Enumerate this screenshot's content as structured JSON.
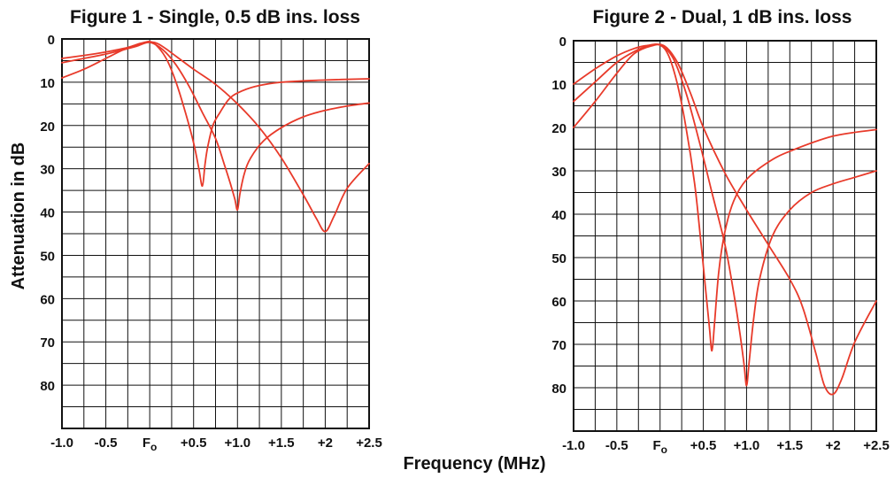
{
  "shared": {
    "xlabel": "Frequency (MHz)",
    "ylabel": "Attenuation in dB"
  },
  "colors": {
    "curve": "#e83a2a",
    "grid": "#111111"
  },
  "chart_data": [
    {
      "type": "line",
      "title": "Figure 1 - Single, 0.5 dB ins. loss",
      "xlabel": "Frequency (MHz)",
      "ylabel": "Attenuation in dB",
      "xlim": [
        -1.0,
        2.5
      ],
      "ylim": [
        0,
        90
      ],
      "y_inverted": true,
      "grid": true,
      "x_ticks": [
        {
          "value": -1.0,
          "label": "-1.0"
        },
        {
          "value": -0.5,
          "label": "-0.5"
        },
        {
          "value": 0.0,
          "label": "F",
          "sub": "o"
        },
        {
          "value": 0.5,
          "label": "+0.5"
        },
        {
          "value": 1.0,
          "label": "+1.0"
        },
        {
          "value": 1.5,
          "label": "+1.5"
        },
        {
          "value": 2.0,
          "label": "+2"
        },
        {
          "value": 2.5,
          "label": "+2.5"
        }
      ],
      "y_ticks": [
        {
          "value": 0,
          "label": "0"
        },
        {
          "value": 10,
          "label": "10"
        },
        {
          "value": 20,
          "label": "20"
        },
        {
          "value": 30,
          "label": "30"
        },
        {
          "value": 40,
          "label": "40"
        },
        {
          "value": 50,
          "label": "50"
        },
        {
          "value": 60,
          "label": "60"
        },
        {
          "value": 70,
          "label": "70"
        },
        {
          "value": 80,
          "label": "80"
        }
      ],
      "series": [
        {
          "x": [
            -1.0,
            -0.75,
            -0.5,
            -0.3,
            -0.15,
            0.0,
            0.1,
            0.2,
            0.3,
            0.4,
            0.5,
            0.56,
            0.6,
            0.63,
            0.66,
            0.72,
            0.8,
            0.9,
            1.0,
            1.2,
            1.5,
            2.0,
            2.5
          ],
          "y": [
            4.5,
            3.8,
            3.0,
            2.2,
            1.4,
            0.6,
            2.0,
            5.0,
            10.0,
            16.5,
            24.0,
            30.0,
            34.0,
            29.0,
            25.0,
            20.0,
            17.0,
            14.0,
            12.5,
            11.0,
            10.0,
            9.5,
            9.2
          ]
        },
        {
          "x": [
            -1.0,
            -0.75,
            -0.5,
            -0.3,
            -0.15,
            0.0,
            0.15,
            0.3,
            0.45,
            0.6,
            0.75,
            0.85,
            0.92,
            0.97,
            1.0,
            1.03,
            1.08,
            1.15,
            1.3,
            1.5,
            1.75,
            2.0,
            2.25,
            2.5
          ],
          "y": [
            5.5,
            4.5,
            3.5,
            2.5,
            1.7,
            0.8,
            2.5,
            6.0,
            11.0,
            17.0,
            23.0,
            29.0,
            33.5,
            37.0,
            39.5,
            35.5,
            31.0,
            27.5,
            23.5,
            20.5,
            18.0,
            16.5,
            15.5,
            14.8
          ]
        },
        {
          "x": [
            -1.0,
            -0.75,
            -0.5,
            -0.3,
            -0.1,
            0.05,
            0.15,
            0.3,
            0.5,
            0.75,
            1.0,
            1.25,
            1.5,
            1.75,
            1.9,
            2.0,
            2.1,
            2.25,
            2.5
          ],
          "y": [
            9.0,
            7.0,
            4.5,
            2.5,
            1.0,
            0.8,
            1.8,
            4.0,
            7.0,
            10.5,
            15.0,
            20.5,
            27.5,
            36.0,
            41.5,
            44.5,
            41.0,
            34.5,
            28.8
          ]
        }
      ]
    },
    {
      "type": "line",
      "title": "Figure 2 - Dual, 1 dB ins. loss",
      "xlabel": "Frequency (MHz)",
      "ylabel": "Attenuation in dB",
      "xlim": [
        -1.0,
        2.5
      ],
      "ylim": [
        0,
        90
      ],
      "y_inverted": true,
      "grid": true,
      "x_ticks": [
        {
          "value": -1.0,
          "label": "-1.0"
        },
        {
          "value": -0.5,
          "label": "-0.5"
        },
        {
          "value": 0.0,
          "label": "F",
          "sub": "o"
        },
        {
          "value": 0.5,
          "label": "+0.5"
        },
        {
          "value": 1.0,
          "label": "+1.0"
        },
        {
          "value": 1.5,
          "label": "+1.5"
        },
        {
          "value": 2.0,
          "label": "+2"
        },
        {
          "value": 2.5,
          "label": "+2.5"
        }
      ],
      "y_ticks": [
        {
          "value": 0,
          "label": "0"
        },
        {
          "value": 10,
          "label": "10"
        },
        {
          "value": 20,
          "label": "20"
        },
        {
          "value": 30,
          "label": "30"
        },
        {
          "value": 40,
          "label": "40"
        },
        {
          "value": 50,
          "label": "50"
        },
        {
          "value": 60,
          "label": "60"
        },
        {
          "value": 70,
          "label": "70"
        },
        {
          "value": 80,
          "label": "80"
        }
      ],
      "series": [
        {
          "x": [
            -1.0,
            -0.75,
            -0.5,
            -0.3,
            -0.15,
            0.0,
            0.1,
            0.2,
            0.3,
            0.4,
            0.47,
            0.53,
            0.57,
            0.6,
            0.63,
            0.68,
            0.75,
            0.85,
            1.0,
            1.25,
            1.5,
            2.0,
            2.5
          ],
          "y": [
            10.0,
            6.5,
            3.5,
            1.8,
            1.1,
            1.0,
            3.5,
            10.0,
            20.0,
            33.0,
            46.0,
            58.0,
            66.0,
            71.5,
            65.0,
            53.0,
            44.0,
            37.0,
            32.0,
            28.0,
            25.5,
            22.0,
            20.5
          ]
        },
        {
          "x": [
            -1.0,
            -0.75,
            -0.5,
            -0.3,
            -0.15,
            0.0,
            0.15,
            0.3,
            0.45,
            0.6,
            0.75,
            0.85,
            0.92,
            0.97,
            1.0,
            1.03,
            1.08,
            1.15,
            1.3,
            1.5,
            1.75,
            2.0,
            2.25,
            2.5
          ],
          "y": [
            14.0,
            9.5,
            5.0,
            2.5,
            1.3,
            1.0,
            4.0,
            12.0,
            23.0,
            35.0,
            47.0,
            58.0,
            67.0,
            74.5,
            79.5,
            74.0,
            64.5,
            55.0,
            45.0,
            39.0,
            35.0,
            33.0,
            31.5,
            30.0
          ]
        },
        {
          "x": [
            -1.0,
            -0.75,
            -0.5,
            -0.3,
            -0.1,
            0.05,
            0.2,
            0.35,
            0.5,
            0.75,
            1.0,
            1.25,
            1.5,
            1.65,
            1.8,
            1.9,
            2.0,
            2.1,
            2.25,
            2.5
          ],
          "y": [
            20.0,
            14.0,
            7.5,
            3.0,
            1.2,
            1.2,
            5.0,
            12.0,
            20.0,
            30.5,
            39.0,
            47.0,
            55.0,
            61.5,
            72.0,
            79.5,
            81.5,
            78.0,
            69.5,
            60.0
          ]
        }
      ]
    }
  ]
}
